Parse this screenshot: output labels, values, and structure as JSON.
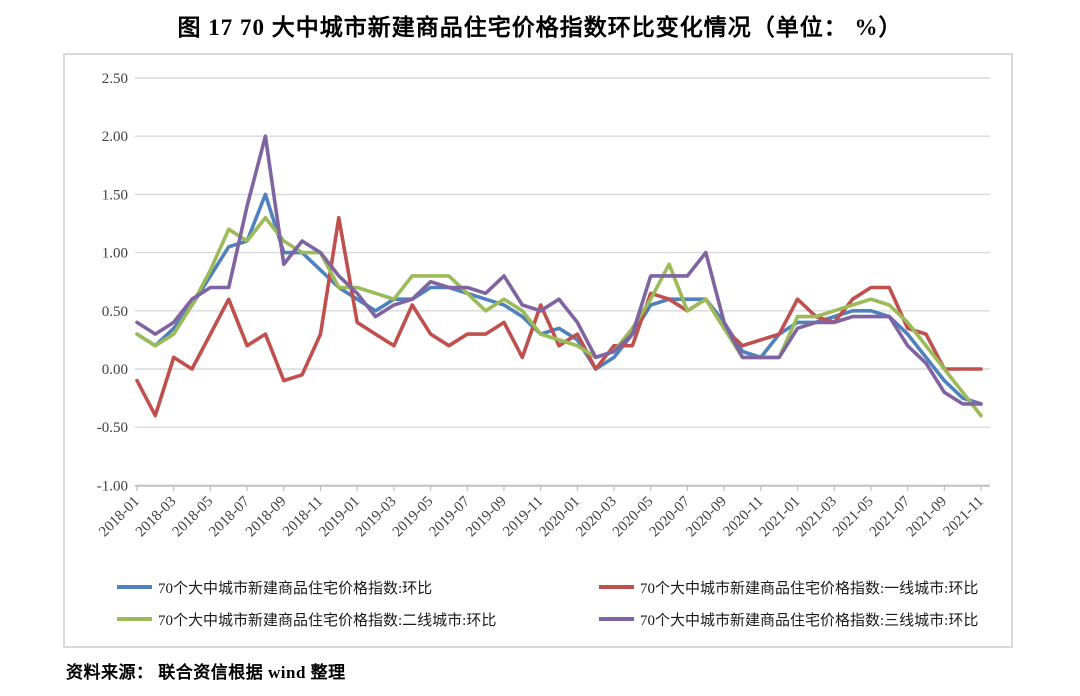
{
  "title": "图 17  70 大中城市新建商品住宅价格指数环比变化情况（单位： %）",
  "source_note": "资料来源： 联合资信根据 wind 整理",
  "y_axis_tick_labels": [
    "2.50",
    "2.00",
    "1.50",
    "1.00",
    "0.50",
    "0.00",
    "-0.50",
    "-1.00"
  ],
  "chart_data": {
    "type": "line",
    "title": "70大中城市新建商品住宅价格指数环比变化情况",
    "unit": "%",
    "grid": true,
    "legend_position": "bottom",
    "ylim": [
      -1.0,
      2.5
    ],
    "ytick_step": 0.5,
    "xtick_every": 2,
    "x": [
      "2018-01",
      "2018-02",
      "2018-03",
      "2018-04",
      "2018-05",
      "2018-06",
      "2018-07",
      "2018-08",
      "2018-09",
      "2018-10",
      "2018-11",
      "2018-12",
      "2019-01",
      "2019-02",
      "2019-03",
      "2019-04",
      "2019-05",
      "2019-06",
      "2019-07",
      "2019-08",
      "2019-09",
      "2019-10",
      "2019-11",
      "2019-12",
      "2020-01",
      "2020-02",
      "2020-03",
      "2020-04",
      "2020-05",
      "2020-06",
      "2020-07",
      "2020-08",
      "2020-09",
      "2020-10",
      "2020-11",
      "2020-12",
      "2021-01",
      "2021-02",
      "2021-03",
      "2021-04",
      "2021-05",
      "2021-06",
      "2021-07",
      "2021-08",
      "2021-09",
      "2021-10",
      "2021-11"
    ],
    "series": [
      {
        "name": "70个大中城市新建商品住宅价格指数:环比",
        "color": "#4F81BD",
        "values": [
          0.3,
          0.2,
          0.35,
          0.55,
          0.8,
          1.05,
          1.1,
          1.5,
          1.0,
          1.0,
          0.85,
          0.7,
          0.6,
          0.5,
          0.6,
          0.6,
          0.7,
          0.7,
          0.65,
          0.6,
          0.55,
          0.45,
          0.3,
          0.35,
          0.25,
          0.0,
          0.1,
          0.3,
          0.55,
          0.6,
          0.6,
          0.6,
          0.4,
          0.15,
          0.1,
          0.3,
          0.4,
          0.4,
          0.45,
          0.5,
          0.5,
          0.45,
          0.3,
          0.1,
          -0.1,
          -0.25,
          -0.3
        ]
      },
      {
        "name": "70个大中城市新建商品住宅价格指数:一线城市:环比",
        "color": "#C0504D",
        "values": [
          -0.1,
          -0.4,
          0.1,
          0.0,
          0.3,
          0.6,
          0.2,
          0.3,
          -0.1,
          -0.05,
          0.3,
          1.3,
          0.4,
          0.3,
          0.2,
          0.55,
          0.3,
          0.2,
          0.3,
          0.3,
          0.4,
          0.1,
          0.55,
          0.2,
          0.3,
          0.0,
          0.2,
          0.2,
          0.65,
          0.6,
          0.5,
          0.6,
          0.35,
          0.2,
          0.25,
          0.3,
          0.6,
          0.45,
          0.4,
          0.6,
          0.7,
          0.7,
          0.35,
          0.3,
          0.0,
          0.0,
          0.0
        ]
      },
      {
        "name": "70个大中城市新建商品住宅价格指数:二线城市:环比",
        "color": "#9BBB59",
        "values": [
          0.3,
          0.2,
          0.3,
          0.55,
          0.85,
          1.2,
          1.1,
          1.3,
          1.1,
          1.0,
          1.0,
          0.7,
          0.7,
          0.65,
          0.6,
          0.8,
          0.8,
          0.8,
          0.65,
          0.5,
          0.6,
          0.5,
          0.3,
          0.25,
          0.2,
          0.1,
          0.15,
          0.35,
          0.6,
          0.9,
          0.5,
          0.6,
          0.35,
          0.1,
          0.1,
          0.1,
          0.45,
          0.45,
          0.5,
          0.55,
          0.6,
          0.55,
          0.4,
          0.2,
          0.0,
          -0.2,
          -0.4
        ]
      },
      {
        "name": "70个大中城市新建商品住宅价格指数:三线城市:环比",
        "color": "#8064A2",
        "values": [
          0.4,
          0.3,
          0.4,
          0.6,
          0.7,
          0.7,
          1.4,
          2.0,
          0.9,
          1.1,
          1.0,
          0.8,
          0.65,
          0.45,
          0.55,
          0.6,
          0.75,
          0.7,
          0.7,
          0.65,
          0.8,
          0.55,
          0.5,
          0.6,
          0.4,
          0.1,
          0.15,
          0.3,
          0.8,
          0.8,
          0.8,
          1.0,
          0.4,
          0.1,
          0.1,
          0.1,
          0.35,
          0.4,
          0.4,
          0.45,
          0.45,
          0.45,
          0.2,
          0.05,
          -0.2,
          -0.3,
          -0.3
        ]
      }
    ]
  }
}
